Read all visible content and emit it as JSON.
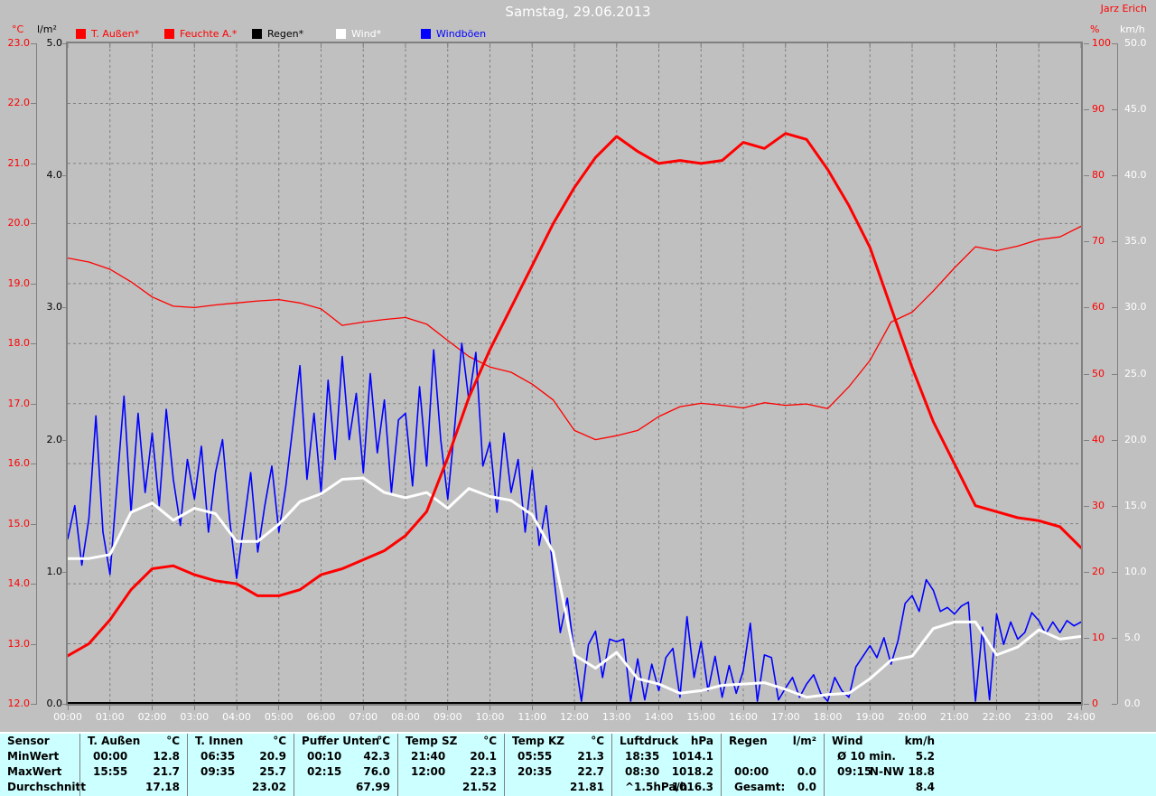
{
  "header": {
    "title": "Samstag, 29.06.2013",
    "author": "Jarz Erich"
  },
  "units": {
    "temp": "°C",
    "rain": "l/m²",
    "humidity": "%",
    "wind": "km/h"
  },
  "legend": [
    {
      "label": "T. Außen*",
      "color": "#ff0000"
    },
    {
      "label": "Feuchte A.*",
      "color": "#ff0000"
    },
    {
      "label": "Regen*",
      "color": "#000000"
    },
    {
      "label": "Wind*",
      "color": "#ffffff"
    },
    {
      "label": "Windböen",
      "color": "#0000ff"
    }
  ],
  "axes": {
    "temp_ticks": [
      "23.0",
      "22.0",
      "21.0",
      "20.0",
      "19.0",
      "18.0",
      "17.0",
      "16.0",
      "15.0",
      "14.0",
      "13.0",
      "12.0"
    ],
    "rain_ticks": [
      "5.0",
      "4.0",
      "3.0",
      "2.0",
      "1.0",
      "0.0"
    ],
    "humidity_ticks": [
      "100",
      "90",
      "80",
      "70",
      "60",
      "50",
      "40",
      "30",
      "20",
      "10",
      "0"
    ],
    "wind_ticks": [
      "50.0",
      "45.0",
      "40.0",
      "35.0",
      "30.0",
      "25.0",
      "20.0",
      "15.0",
      "10.0",
      "5.0",
      "0.0"
    ],
    "x_ticks": [
      "00:00",
      "01:00",
      "02:00",
      "03:00",
      "04:00",
      "05:00",
      "06:00",
      "07:00",
      "08:00",
      "09:00",
      "10:00",
      "11:00",
      "12:00",
      "13:00",
      "14:00",
      "15:00",
      "16:00",
      "17:00",
      "18:00",
      "19:00",
      "20:00",
      "21:00",
      "22:00",
      "23:00",
      "24:00"
    ]
  },
  "colors": {
    "background": "#c0c0c0",
    "grid": "#808080",
    "table_bg": "#ccffff",
    "temp": "#ff0000",
    "humidity": "#ff0000",
    "rain": "#000000",
    "wind": "#ffffff",
    "gusts": "#0000ff"
  },
  "chart_data": {
    "type": "line",
    "title": "Samstag, 29.06.2013",
    "x_range_hours": [
      0,
      24
    ],
    "grid": "dashed, hourly vertical / 1°C horizontal",
    "series": [
      {
        "name": "T. Außen",
        "unit": "°C",
        "color": "#ff0000",
        "stroke": 3,
        "range": [
          12,
          23
        ],
        "values": [
          12.8,
          13.0,
          13.4,
          13.9,
          14.25,
          14.3,
          14.15,
          14.05,
          14.0,
          13.8,
          13.8,
          13.9,
          14.15,
          14.25,
          14.4,
          14.55,
          14.8,
          15.2,
          16.1,
          17.1,
          17.9,
          18.6,
          19.3,
          20.0,
          20.6,
          21.1,
          21.45,
          21.2,
          21.0,
          21.05,
          21.0,
          21.05,
          21.35,
          21.25,
          21.5,
          21.4,
          20.9,
          20.3,
          19.6,
          18.6,
          17.6,
          16.7,
          16.0,
          15.3,
          15.2,
          15.1,
          15.05,
          14.95,
          14.6
        ]
      },
      {
        "name": "Feuchte A.",
        "unit": "%",
        "color": "#ff0000",
        "stroke": 1.3,
        "range": [
          0,
          100
        ],
        "values": [
          67.5,
          66.9,
          65.8,
          63.9,
          61.6,
          60.2,
          60.0,
          60.4,
          60.7,
          61.0,
          61.2,
          60.7,
          59.8,
          57.3,
          57.8,
          58.2,
          58.5,
          57.5,
          55.0,
          52.6,
          51.0,
          50.2,
          48.4,
          46.0,
          41.4,
          40.0,
          40.6,
          41.4,
          43.5,
          45.0,
          45.5,
          45.2,
          44.8,
          45.6,
          45.2,
          45.4,
          44.7,
          48.0,
          52.0,
          57.8,
          59.3,
          62.5,
          66.0,
          69.2,
          68.6,
          69.3,
          70.3,
          70.7,
          72.3
        ]
      },
      {
        "name": "Regen",
        "unit": "l/m²",
        "color": "#000000",
        "stroke": 2,
        "range": [
          0,
          5
        ],
        "values": [
          0,
          0
        ]
      },
      {
        "name": "Wind",
        "unit": "km/h",
        "color": "#ffffff",
        "stroke": 3,
        "range": [
          0,
          50
        ],
        "values": [
          11.0,
          11.0,
          11.3,
          14.5,
          15.2,
          13.9,
          14.8,
          14.4,
          12.3,
          12.3,
          13.6,
          15.3,
          15.9,
          17.0,
          17.1,
          16.0,
          15.6,
          16.0,
          14.8,
          16.3,
          15.7,
          15.4,
          14.3,
          11.5,
          3.7,
          2.7,
          3.9,
          1.9,
          1.5,
          0.8,
          1.0,
          1.4,
          1.5,
          1.6,
          1.1,
          0.5,
          0.7,
          0.8,
          1.9,
          3.3,
          3.6,
          5.7,
          6.2,
          6.2,
          3.7,
          4.3,
          5.6,
          4.9,
          5.1
        ]
      },
      {
        "name": "Windböen",
        "unit": "km/h",
        "color": "#0000ff",
        "stroke": 1.6,
        "range": [
          0,
          50
        ],
        "values": [
          12.5,
          15,
          10.5,
          14,
          21.8,
          13,
          9.8,
          16.5,
          23.3,
          14.5,
          22,
          16,
          20.5,
          15,
          22.3,
          17,
          13.5,
          18.5,
          15.5,
          19.5,
          13,
          17.5,
          20,
          14,
          9.5,
          13.5,
          17.5,
          11.5,
          15,
          18,
          13,
          16.5,
          21,
          25.6,
          17,
          22,
          16,
          24.5,
          18.5,
          26.3,
          20,
          23.5,
          17.5,
          25,
          19,
          23,
          16,
          21.5,
          22,
          16.5,
          24,
          18,
          26.8,
          20,
          15.5,
          21,
          27.3,
          23,
          26.6,
          18,
          19.8,
          14.5,
          20.5,
          16,
          18.5,
          13,
          17.7,
          12,
          15,
          10,
          5.4,
          8,
          3.8,
          0.2,
          4.5,
          5.5,
          2,
          4.9,
          4.7,
          4.9,
          0.2,
          3.4,
          0.3,
          3,
          1,
          3.5,
          4.2,
          0.5,
          6.6,
          2,
          4.7,
          1,
          3.6,
          0.5,
          2.9,
          0.8,
          2.5,
          6.1,
          0.2,
          3.7,
          3.5,
          0.3,
          1.2,
          2,
          0.5,
          1.5,
          2.2,
          0.8,
          0.2,
          2,
          1,
          0.5,
          2.8,
          3.6,
          4.4,
          3.5,
          5,
          3,
          4.8,
          7.6,
          8.2,
          7,
          9.4,
          8.6,
          7,
          7.3,
          6.8,
          7.4,
          7.7,
          0.2,
          5.8,
          0.3,
          6.8,
          4.5,
          6.2,
          4.9,
          5.4,
          6.9,
          6.3,
          5.3,
          6.2,
          5.4,
          6.3,
          5.9,
          6.2
        ]
      }
    ]
  },
  "table": {
    "row_labels": [
      "Sensor",
      "MinWert",
      "MaxWert",
      "Durchschnitt"
    ],
    "groups": [
      {
        "name": "T. Außen",
        "unit": "°C",
        "rows": [
          [
            "00:00",
            "12.8"
          ],
          [
            "15:55",
            "21.7"
          ],
          [
            "",
            "17.18"
          ]
        ]
      },
      {
        "name": "T. Innen",
        "unit": "°C",
        "rows": [
          [
            "06:35",
            "20.9"
          ],
          [
            "09:35",
            "25.7"
          ],
          [
            "",
            "23.02"
          ]
        ]
      },
      {
        "name": "Puffer Unten",
        "unit": "°C",
        "rows": [
          [
            "00:10",
            "42.3"
          ],
          [
            "02:15",
            "76.0"
          ],
          [
            "",
            "67.99"
          ]
        ]
      },
      {
        "name": "Temp SZ",
        "unit": "°C",
        "rows": [
          [
            "21:40",
            "20.1"
          ],
          [
            "12:00",
            "22.3"
          ],
          [
            "",
            "21.52"
          ]
        ]
      },
      {
        "name": "Temp KZ",
        "unit": "°C",
        "rows": [
          [
            "05:55",
            "21.3"
          ],
          [
            "20:35",
            "22.7"
          ],
          [
            "",
            "21.81"
          ]
        ]
      },
      {
        "name": "Luftdruck",
        "unit": "hPa",
        "rows": [
          [
            "18:35",
            "1014.1"
          ],
          [
            "08:30",
            "1018.2"
          ],
          [
            "^1.5hPa/h",
            "1016.3"
          ]
        ]
      },
      {
        "name": "Regen",
        "unit": "l/m²",
        "rows": [
          [
            "",
            ""
          ],
          [
            "00:00",
            "0.0"
          ],
          [
            "Gesamt:",
            "0.0"
          ]
        ]
      },
      {
        "name": "Wind",
        "unit": "km/h",
        "rows": [
          [
            "Ø 10 min.",
            "5.2"
          ],
          [
            "09:15",
            "N-NW 18.8"
          ],
          [
            "",
            "8.4"
          ]
        ]
      }
    ]
  }
}
